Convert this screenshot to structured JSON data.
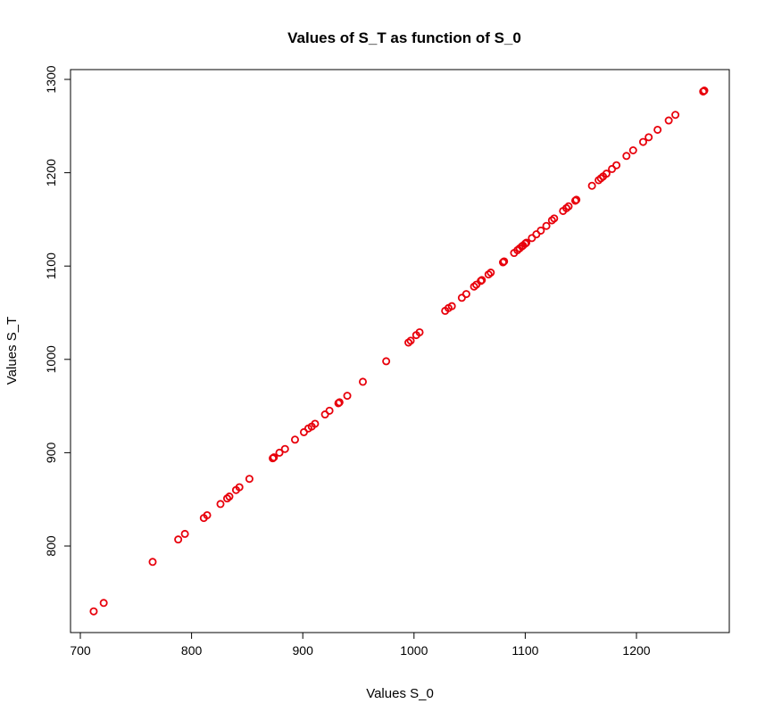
{
  "chart_data": {
    "type": "scatter",
    "title": "Values of S_T as function of S_0",
    "xlabel": "Values S_0",
    "ylabel": "Values S_T",
    "xlim": [
      700,
      1270
    ],
    "ylim": [
      705,
      1310
    ],
    "xticks": [
      700,
      800,
      900,
      1000,
      1100,
      1200
    ],
    "yticks": [
      800,
      900,
      1000,
      1100,
      1200,
      1300
    ],
    "grid": false,
    "marker": "open-circle",
    "marker_color": "#e8000b",
    "x": [
      712,
      721,
      765,
      788,
      794,
      811,
      814,
      826,
      832,
      834,
      840,
      843,
      852,
      873,
      874,
      879,
      884,
      893,
      901,
      905,
      908,
      911,
      920,
      924,
      932,
      933,
      940,
      954,
      975,
      995,
      997,
      1002,
      1005,
      1028,
      1031,
      1034,
      1043,
      1047,
      1054,
      1056,
      1060,
      1061,
      1067,
      1069,
      1080,
      1081,
      1090,
      1093,
      1095,
      1097,
      1098,
      1100,
      1101,
      1106,
      1110,
      1114,
      1119,
      1124,
      1126,
      1134,
      1137,
      1139,
      1145,
      1146,
      1160,
      1166,
      1168,
      1170,
      1173,
      1178,
      1182,
      1191,
      1197,
      1206,
      1211,
      1219,
      1229,
      1235,
      1260,
      1261
    ],
    "y": [
      730,
      739,
      783,
      807,
      813,
      830,
      833,
      845,
      851,
      853,
      860,
      863,
      872,
      894,
      895,
      900,
      904,
      914,
      922,
      926,
      928,
      931,
      941,
      945,
      953,
      954,
      961,
      976,
      998,
      1018,
      1020,
      1026,
      1029,
      1052,
      1055,
      1057,
      1066,
      1070,
      1078,
      1080,
      1084,
      1085,
      1091,
      1093,
      1104,
      1105,
      1114,
      1117,
      1119,
      1121,
      1122,
      1124,
      1125,
      1130,
      1134,
      1138,
      1143,
      1149,
      1151,
      1159,
      1162,
      1164,
      1170,
      1171,
      1186,
      1192,
      1194,
      1196,
      1199,
      1204,
      1208,
      1218,
      1224,
      1233,
      1238,
      1246,
      1256,
      1262,
      1287,
      1288
    ]
  }
}
